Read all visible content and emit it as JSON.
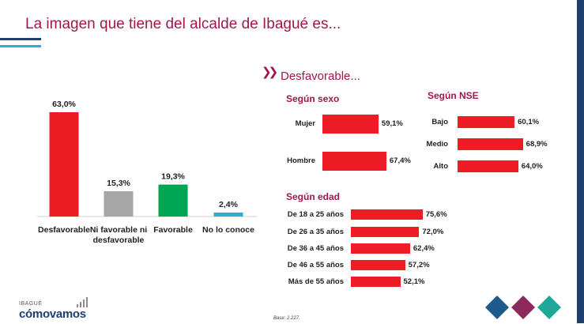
{
  "title": "La imagen que tiene del alcalde de Ibagué es...",
  "section_title": "Desfavorable...",
  "colors": {
    "title": "#a0174e",
    "red": "#ee1c25",
    "gray": "#a6a6a6",
    "green": "#00a651",
    "blue": "#29abe2",
    "navy": "#1f3f6e",
    "diamond_blue": "#1f5a8c",
    "diamond_purple": "#8e2a5b",
    "diamond_teal": "#1fa89a"
  },
  "chart_data": [
    {
      "type": "bar",
      "categories": [
        "Desfavorable",
        "Ni favorable ni desfavorable",
        "Favorable",
        "No lo conoce"
      ],
      "category_lines": [
        [
          "Desfavorable"
        ],
        [
          "Ni favorable ni",
          "desfavorable"
        ],
        [
          "Favorable"
        ],
        [
          "No lo conoce"
        ]
      ],
      "values": [
        63.0,
        15.3,
        19.3,
        2.4
      ],
      "value_labels": [
        "63,0%",
        "15,3%",
        "19,3%",
        "2,4%"
      ],
      "bar_colors": [
        "#ee1c25",
        "#a6a6a6",
        "#00a651",
        "#29abe2"
      ],
      "ylim": [
        0,
        63
      ]
    },
    {
      "type": "bar",
      "orientation": "horizontal",
      "title": "Según sexo",
      "categories": [
        "Mujer",
        "Hombre"
      ],
      "values": [
        59.1,
        67.4
      ],
      "value_labels": [
        "59,1%",
        "67,4%"
      ]
    },
    {
      "type": "bar",
      "orientation": "horizontal",
      "title": "Según NSE",
      "categories": [
        "Bajo",
        "Medio",
        "Alto"
      ],
      "values": [
        60.1,
        68.9,
        64.0
      ],
      "value_labels": [
        "60,1%",
        "68,9%",
        "64,0%"
      ]
    },
    {
      "type": "bar",
      "orientation": "horizontal",
      "title": "Según edad",
      "categories": [
        "De 18 a 25 años",
        "De 26 a 35 años",
        "De 36 a 45 años",
        "De 46 a 55 años",
        "Más de 55 años"
      ],
      "values": [
        75.6,
        72.0,
        62.4,
        57.2,
        52.1
      ],
      "value_labels": [
        "75,6%",
        "72,0%",
        "62,4%",
        "57,2%",
        "52,1%"
      ]
    }
  ],
  "footer": {
    "brand_small": "IBAGUÉ",
    "brand_big": "cómovamos",
    "base_note": "Base: 2.227."
  }
}
